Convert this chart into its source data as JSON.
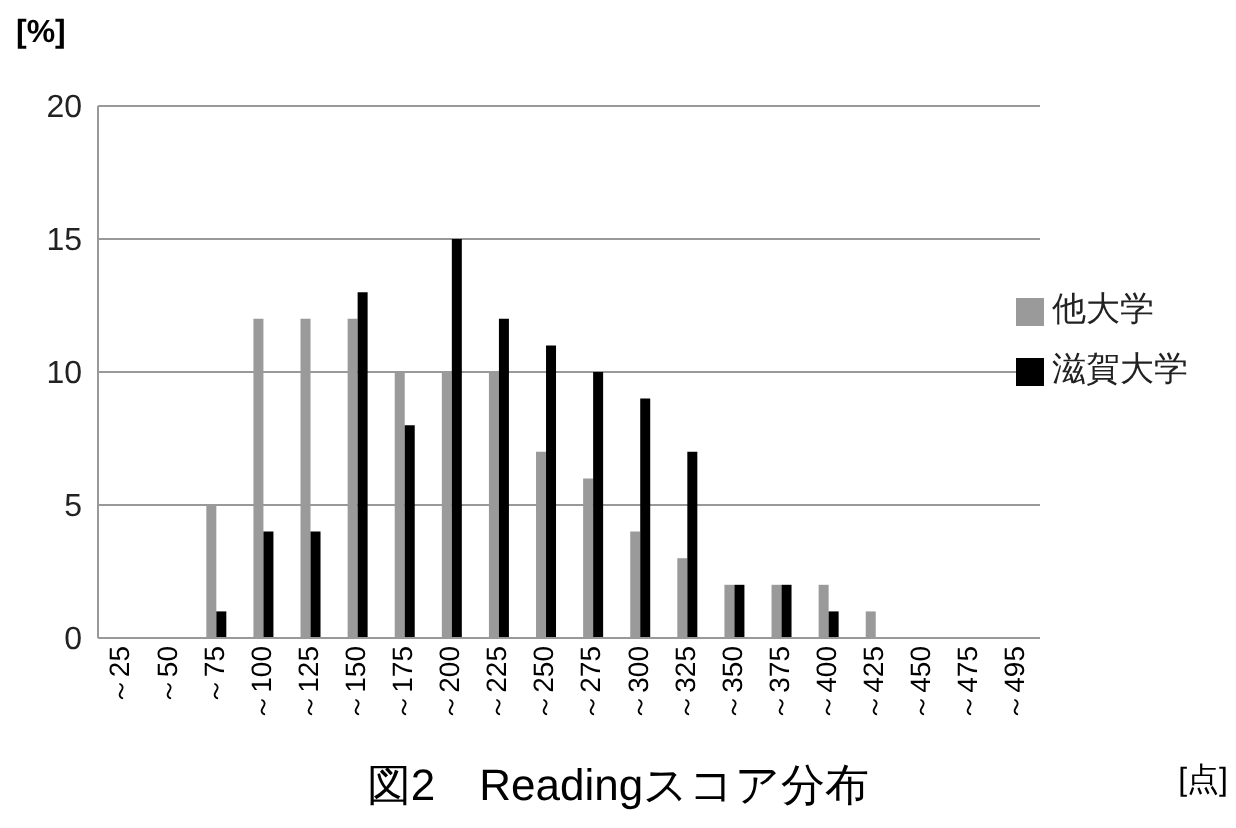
{
  "chart_data": {
    "type": "bar",
    "title": "図2　Readingスコア分布",
    "ylabel": "[%]",
    "xlabel": "[点]",
    "categories": [
      "～25",
      "～50",
      "～75",
      "～100",
      "～125",
      "～150",
      "～175",
      "～200",
      "～225",
      "～250",
      "～275",
      "～300",
      "～325",
      "～350",
      "～375",
      "～400",
      "～425",
      "～450",
      "～475",
      "～495"
    ],
    "series": [
      {
        "name": "他大学",
        "color": "#9a9a9a",
        "values": [
          0,
          0,
          5,
          12,
          12,
          12,
          10,
          10,
          10,
          7,
          6,
          4,
          3,
          2,
          2,
          2,
          1,
          0,
          0,
          0
        ]
      },
      {
        "name": "滋賀大学",
        "color": "#000000",
        "values": [
          0,
          0,
          1,
          4,
          4,
          13,
          8,
          15,
          12,
          11,
          10,
          9,
          7,
          2,
          2,
          1,
          0,
          0,
          0,
          0
        ]
      }
    ],
    "ylim": [
      0,
      20
    ],
    "yticks": [
      0,
      5,
      10,
      15,
      20
    ],
    "grid": "y",
    "legend": "right"
  }
}
